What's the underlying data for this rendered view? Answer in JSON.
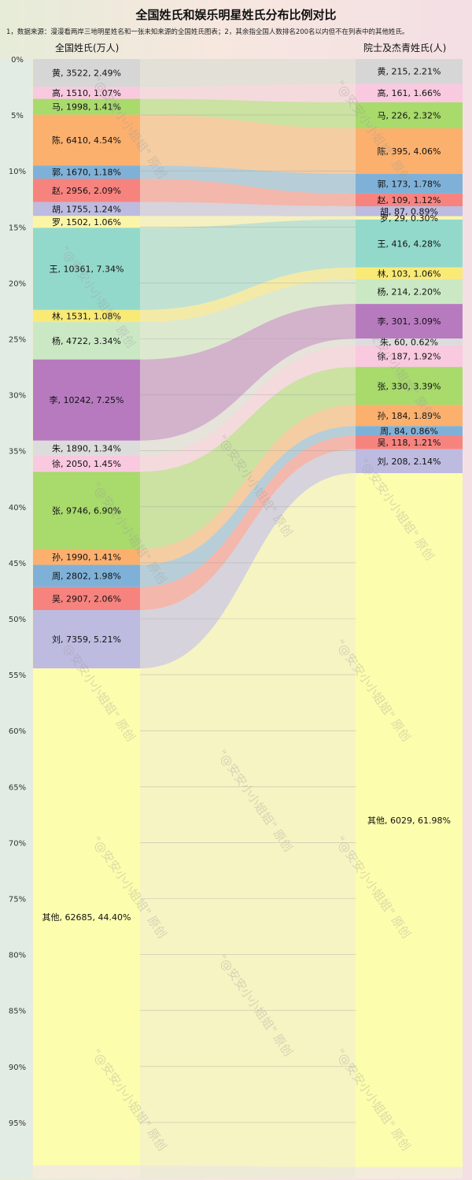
{
  "title": "全国姓氏和娱乐明星姓氏分布比例对比",
  "subtitle": "1，数据来源：漫漫看两岸三地明星姓名和一张未知来源的全国姓氏图表；2，其余指全国人数排名200名以内但不在列表中的其他姓氏。",
  "left_header": "全国姓氏(万人)",
  "right_header": "院士及杰青姓氏(人)",
  "watermark": "\"@安安小小姐姐\" 原创",
  "chart_data": {
    "type": "sankey",
    "title": "全国姓氏和娱乐明星姓氏分布比例对比",
    "y_axis": {
      "range": [
        0,
        100
      ],
      "unit": "%",
      "ticks": [
        "0%",
        "5%",
        "10%",
        "15%",
        "20%",
        "25%",
        "30%",
        "35%",
        "40%",
        "45%",
        "50%",
        "55%",
        "60%",
        "65%",
        "70%",
        "75%",
        "80%",
        "85%",
        "90%",
        "95%"
      ]
    },
    "left": [
      {
        "name": "黄",
        "value": 3522,
        "pct": 2.49,
        "label": "黄, 3522, 2.49%",
        "color": "#d6d6d6"
      },
      {
        "name": "高",
        "value": 1510,
        "pct": 1.07,
        "label": "高, 1510, 1.07%",
        "color": "#f9c9df"
      },
      {
        "name": "马",
        "value": 1998,
        "pct": 1.41,
        "label": "马, 1998, 1.41%",
        "color": "#a8da6c"
      },
      {
        "name": "陈",
        "value": 6410,
        "pct": 4.54,
        "label": "陈, 6410, 4.54%",
        "color": "#fbb06e"
      },
      {
        "name": "郭",
        "value": 1670,
        "pct": 1.18,
        "label": "郭, 1670, 1.18%",
        "color": "#7fb1d8"
      },
      {
        "name": "赵",
        "value": 2956,
        "pct": 2.09,
        "label": "赵, 2956, 2.09%",
        "color": "#f7837f"
      },
      {
        "name": "胡",
        "value": 1755,
        "pct": 1.24,
        "label": "胡, 1755, 1.24%",
        "color": "#bdbbe0"
      },
      {
        "name": "罗",
        "value": 1502,
        "pct": 1.06,
        "label": "罗, 1502, 1.06%",
        "color": "#fbf6a7"
      },
      {
        "name": "王",
        "value": 10361,
        "pct": 7.34,
        "label": "王, 10361, 7.34%",
        "color": "#93d9cb"
      },
      {
        "name": "林",
        "value": 1531,
        "pct": 1.08,
        "label": "林, 1531, 1.08%",
        "color": "#f9ea76"
      },
      {
        "name": "杨",
        "value": 4722,
        "pct": 3.34,
        "label": "杨, 4722, 3.34%",
        "color": "#cbe8c5"
      },
      {
        "name": "李",
        "value": 10242,
        "pct": 7.25,
        "label": "李, 10242, 7.25%",
        "color": "#b77abf"
      },
      {
        "name": "朱",
        "value": 1890,
        "pct": 1.34,
        "label": "朱, 1890, 1.34%",
        "color": "#dcdcdc"
      },
      {
        "name": "徐",
        "value": 2050,
        "pct": 1.45,
        "label": "徐, 2050, 1.45%",
        "color": "#f9c9df"
      },
      {
        "name": "张",
        "value": 9746,
        "pct": 6.9,
        "label": "张, 9746, 6.90%",
        "color": "#a8da6c"
      },
      {
        "name": "孙",
        "value": 1990,
        "pct": 1.41,
        "label": "孙, 1990, 1.41%",
        "color": "#fbb06e"
      },
      {
        "name": "周",
        "value": 2802,
        "pct": 1.98,
        "label": "周, 2802, 1.98%",
        "color": "#7fb1d8"
      },
      {
        "name": "吴",
        "value": 2907,
        "pct": 2.06,
        "label": "吴, 2907, 2.06%",
        "color": "#f7837f"
      },
      {
        "name": "刘",
        "value": 7359,
        "pct": 5.21,
        "label": "刘, 7359, 5.21%",
        "color": "#bdbbe0"
      },
      {
        "name": "其他",
        "value": 62685,
        "pct": 44.4,
        "label": "其他, 62685, 44.40%",
        "color": "#fdfdae"
      }
    ],
    "right": [
      {
        "name": "黄",
        "value": 215,
        "pct": 2.21,
        "label": "黄, 215, 2.21%",
        "color": "#d6d6d6"
      },
      {
        "name": "高",
        "value": 161,
        "pct": 1.66,
        "label": "高, 161, 1.66%",
        "color": "#f9c9df"
      },
      {
        "name": "马",
        "value": 226,
        "pct": 2.32,
        "label": "马, 226, 2.32%",
        "color": "#a8da6c"
      },
      {
        "name": "陈",
        "value": 395,
        "pct": 4.06,
        "label": "陈, 395, 4.06%",
        "color": "#fbb06e"
      },
      {
        "name": "郭",
        "value": 173,
        "pct": 1.78,
        "label": "郭, 173, 1.78%",
        "color": "#7fb1d8"
      },
      {
        "name": "赵",
        "value": 109,
        "pct": 1.12,
        "label": "赵, 109, 1.12%",
        "color": "#f7837f"
      },
      {
        "name": "胡",
        "value": 87,
        "pct": 0.89,
        "label": "胡, 87, 0.89%",
        "color": "#bdbbe0"
      },
      {
        "name": "罗",
        "value": 29,
        "pct": 0.3,
        "label": "罗, 29, 0.30%",
        "color": "#fbf6a7"
      },
      {
        "name": "王",
        "value": 416,
        "pct": 4.28,
        "label": "王, 416, 4.28%",
        "color": "#93d9cb"
      },
      {
        "name": "林",
        "value": 103,
        "pct": 1.06,
        "label": "林, 103, 1.06%",
        "color": "#f9ea76"
      },
      {
        "name": "杨",
        "value": 214,
        "pct": 2.2,
        "label": "杨, 214, 2.20%",
        "color": "#cbe8c5"
      },
      {
        "name": "李",
        "value": 301,
        "pct": 3.09,
        "label": "李, 301, 3.09%",
        "color": "#b77abf"
      },
      {
        "name": "朱",
        "value": 60,
        "pct": 0.62,
        "label": "朱, 60, 0.62%",
        "color": "#dcdcdc"
      },
      {
        "name": "徐",
        "value": 187,
        "pct": 1.92,
        "label": "徐, 187, 1.92%",
        "color": "#f9c9df"
      },
      {
        "name": "张",
        "value": 330,
        "pct": 3.39,
        "label": "张, 330, 3.39%",
        "color": "#a8da6c"
      },
      {
        "name": "孙",
        "value": 184,
        "pct": 1.89,
        "label": "孙, 184, 1.89%",
        "color": "#fbb06e"
      },
      {
        "name": "周",
        "value": 84,
        "pct": 0.86,
        "label": "周, 84, 0.86%",
        "color": "#7fb1d8"
      },
      {
        "name": "吴",
        "value": 118,
        "pct": 1.21,
        "label": "吴, 118, 1.21%",
        "color": "#f7837f"
      },
      {
        "name": "刘",
        "value": 208,
        "pct": 2.14,
        "label": "刘, 208, 2.14%",
        "color": "#bdbbe0"
      },
      {
        "name": "其他",
        "value": 6029,
        "pct": 61.98,
        "label": "其他, 6029, 61.98%",
        "color": "#fdfdae"
      }
    ]
  }
}
